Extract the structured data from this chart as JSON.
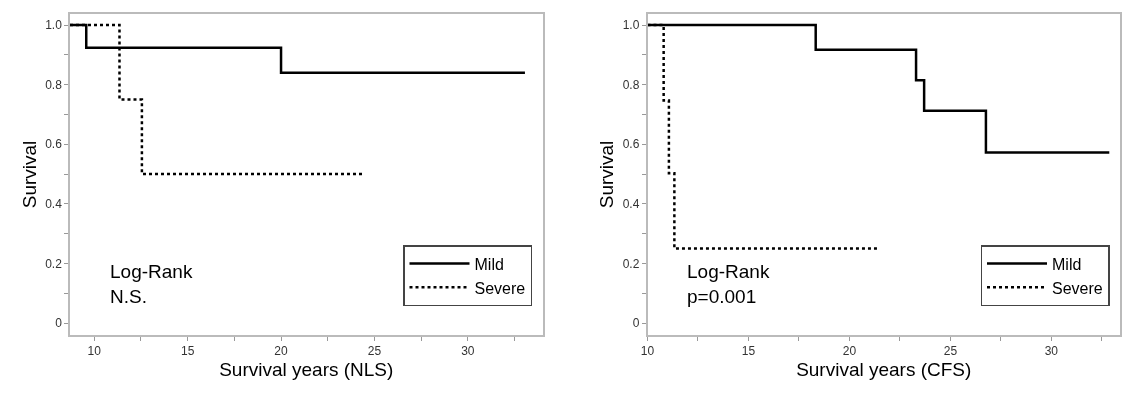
{
  "chart_data": [
    {
      "type": "step",
      "xlabel": "Survival years (NLS)",
      "ylabel": "Survival",
      "xlim": [
        8.7,
        34.0
      ],
      "ylim": [
        -0.04,
        1.037
      ],
      "xticks": [
        10,
        {
          "value": 12.5,
          "label": null
        },
        15,
        {
          "value": 17.5,
          "label": null
        },
        20,
        {
          "value": 22.5,
          "label": null
        },
        25,
        {
          "value": 27.5,
          "label": null
        },
        30,
        {
          "value": 32.5,
          "label": null
        }
      ],
      "yticks": [
        0,
        {
          "value": 0.1,
          "label": null
        },
        {
          "value": 0.2,
          "label": "0.2"
        },
        {
          "value": 0.3,
          "label": null
        },
        {
          "value": 0.4,
          "label": "0.4"
        },
        {
          "value": 0.5,
          "label": null
        },
        {
          "value": 0.6,
          "label": "0.6"
        },
        {
          "value": 0.7,
          "label": null
        },
        {
          "value": 0.8,
          "label": "0.8"
        },
        {
          "value": 0.9,
          "label": null
        },
        {
          "value": 1.0,
          "label": "1.0"
        }
      ],
      "series": [
        {
          "name": "Mild",
          "color": "#000000",
          "line_style": "solid",
          "x": [
            8.7,
            9.57,
            20.0,
            33.06
          ],
          "values": [
            1.0,
            0.924,
            0.84,
            0.84
          ]
        },
        {
          "name": "Severe",
          "color": "#000000",
          "line_style": "dotted",
          "x": [
            8.7,
            11.35,
            12.55,
            24.4
          ],
          "values": [
            1.0,
            0.75,
            0.5,
            0.5
          ]
        }
      ],
      "annotations": [
        "Log-Rank\nN.S."
      ],
      "legend": "bottom right"
    },
    {
      "type": "step",
      "xlabel": "Survival years (CFS)",
      "ylabel": "Survival",
      "xlim": [
        10.0,
        33.4
      ],
      "ylim": [
        -0.04,
        1.037
      ],
      "xticks": [
        10,
        {
          "value": 12.5,
          "label": null
        },
        15,
        {
          "value": 17.5,
          "label": null
        },
        20,
        {
          "value": 22.5,
          "label": null
        },
        25,
        {
          "value": 27.5,
          "label": null
        },
        30,
        {
          "value": 32.5,
          "label": null
        }
      ],
      "yticks": [
        0,
        {
          "value": 0.1,
          "label": null
        },
        {
          "value": 0.2,
          "label": "0.2"
        },
        {
          "value": 0.3,
          "label": null
        },
        {
          "value": 0.4,
          "label": "0.4"
        },
        {
          "value": 0.5,
          "label": null
        },
        {
          "value": 0.6,
          "label": "0.6"
        },
        {
          "value": 0.7,
          "label": null
        },
        {
          "value": 0.8,
          "label": "0.8"
        },
        {
          "value": 0.9,
          "label": null
        },
        {
          "value": 1.0,
          "label": "1.0"
        }
      ],
      "series": [
        {
          "name": "Mild",
          "color": "#000000",
          "line_style": "solid",
          "x": [
            10.0,
            18.33,
            23.3,
            23.7,
            26.76,
            32.87
          ],
          "values": [
            1.0,
            0.917,
            0.815,
            0.712,
            0.572,
            0.572
          ]
        },
        {
          "name": "Severe",
          "color": "#000000",
          "line_style": "dotted",
          "x": [
            10.0,
            10.8,
            11.06,
            11.33,
            21.4
          ],
          "values": [
            1.0,
            0.747,
            0.503,
            0.25,
            0.25
          ]
        }
      ],
      "annotations": [
        "Log-Rank\np=0.001"
      ],
      "legend": "bottom right"
    }
  ]
}
